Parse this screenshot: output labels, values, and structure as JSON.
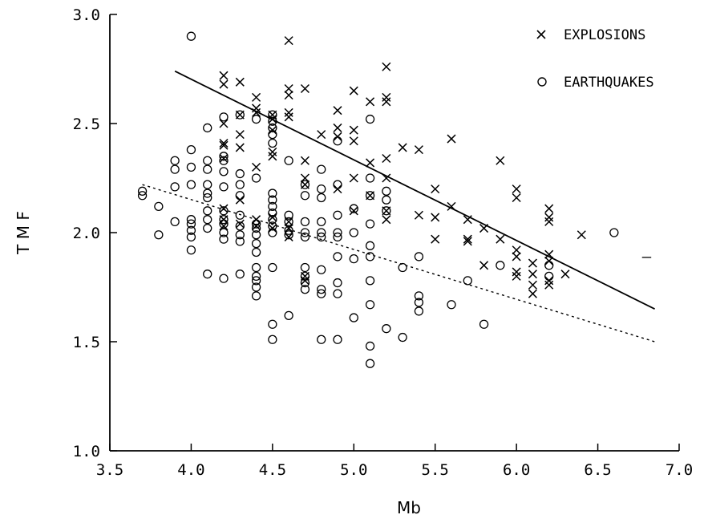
{
  "chart_data": {
    "type": "scatter",
    "title": "",
    "xlabel": "Mb",
    "ylabel": "T M F",
    "xlim": [
      3.5,
      7.0
    ],
    "ylim": [
      1.0,
      3.0
    ],
    "x_ticks": [
      "3.5",
      "4.0",
      "4.5",
      "5.0",
      "5.5",
      "6.0",
      "6.5",
      "7.0"
    ],
    "y_ticks": [
      "1.0",
      "1.5",
      "2.0",
      "2.5",
      "3.0"
    ],
    "grid": false,
    "legend_position": "top-right",
    "series": [
      {
        "name": "EXPLOSIONS",
        "marker": "x",
        "points": [
          [
            4.2,
            2.72
          ],
          [
            4.2,
            2.68
          ],
          [
            4.3,
            2.69
          ],
          [
            4.4,
            2.62
          ],
          [
            4.6,
            2.88
          ],
          [
            4.6,
            2.66
          ],
          [
            4.6,
            2.63
          ],
          [
            4.7,
            2.66
          ],
          [
            4.9,
            2.56
          ],
          [
            4.9,
            2.48
          ],
          [
            5.0,
            2.65
          ],
          [
            5.0,
            2.47
          ],
          [
            5.0,
            2.42
          ],
          [
            5.1,
            2.6
          ],
          [
            5.2,
            2.76
          ],
          [
            5.2,
            2.62
          ],
          [
            5.2,
            2.6
          ],
          [
            4.2,
            2.5
          ],
          [
            4.3,
            2.54
          ],
          [
            4.3,
            2.45
          ],
          [
            4.3,
            2.39
          ],
          [
            4.4,
            2.57
          ],
          [
            4.4,
            2.55
          ],
          [
            4.5,
            2.54
          ],
          [
            4.5,
            2.52
          ],
          [
            4.5,
            2.47
          ],
          [
            4.6,
            2.55
          ],
          [
            4.6,
            2.53
          ],
          [
            4.8,
            2.45
          ],
          [
            4.9,
            2.44
          ],
          [
            4.2,
            2.41
          ],
          [
            4.2,
            2.4
          ],
          [
            4.2,
            2.34
          ],
          [
            4.4,
            2.3
          ],
          [
            4.5,
            2.37
          ],
          [
            4.5,
            2.35
          ],
          [
            4.7,
            2.33
          ],
          [
            4.7,
            2.25
          ],
          [
            4.7,
            2.22
          ],
          [
            4.9,
            2.2
          ],
          [
            5.0,
            2.25
          ],
          [
            5.1,
            2.32
          ],
          [
            5.1,
            2.17
          ],
          [
            5.2,
            2.34
          ],
          [
            5.2,
            2.25
          ],
          [
            5.3,
            2.39
          ],
          [
            5.4,
            2.38
          ],
          [
            5.6,
            2.43
          ],
          [
            5.5,
            2.2
          ],
          [
            5.2,
            2.1
          ],
          [
            5.2,
            2.06
          ],
          [
            5.4,
            2.08
          ],
          [
            5.5,
            2.07
          ],
          [
            5.5,
            1.97
          ],
          [
            5.6,
            2.12
          ],
          [
            5.7,
            2.06
          ],
          [
            5.7,
            1.97
          ],
          [
            5.7,
            1.96
          ],
          [
            5.8,
            2.02
          ],
          [
            5.8,
            1.85
          ],
          [
            5.9,
            2.33
          ],
          [
            5.9,
            1.97
          ],
          [
            6.0,
            2.2
          ],
          [
            6.0,
            2.16
          ],
          [
            6.0,
            1.92
          ],
          [
            6.0,
            1.89
          ],
          [
            6.0,
            1.82
          ],
          [
            6.0,
            1.8
          ],
          [
            6.1,
            1.86
          ],
          [
            6.1,
            1.81
          ],
          [
            6.1,
            1.76
          ],
          [
            6.1,
            1.72
          ],
          [
            6.2,
            2.11
          ],
          [
            6.2,
            2.07
          ],
          [
            6.2,
            2.05
          ],
          [
            6.2,
            1.9
          ],
          [
            6.2,
            1.87
          ],
          [
            6.2,
            1.78
          ],
          [
            6.2,
            1.76
          ],
          [
            6.3,
            1.81
          ],
          [
            6.4,
            1.99
          ],
          [
            4.2,
            2.11
          ],
          [
            4.2,
            2.06
          ],
          [
            4.2,
            2.03
          ],
          [
            4.3,
            2.15
          ],
          [
            4.3,
            2.04
          ],
          [
            4.4,
            2.06
          ],
          [
            4.4,
            2.03
          ],
          [
            4.5,
            2.07
          ],
          [
            4.5,
            2.02
          ],
          [
            4.6,
            2.05
          ],
          [
            4.6,
            2.02
          ],
          [
            4.6,
            1.98
          ],
          [
            4.7,
            1.8
          ],
          [
            4.7,
            1.78
          ],
          [
            5.0,
            2.1
          ]
        ]
      },
      {
        "name": "EARTHQUAKES",
        "marker": "o",
        "points": [
          [
            4.0,
            2.9
          ],
          [
            4.2,
            2.53
          ],
          [
            4.3,
            2.54
          ],
          [
            4.4,
            2.52
          ],
          [
            4.5,
            2.54
          ],
          [
            4.5,
            2.51
          ],
          [
            4.5,
            2.48
          ],
          [
            4.5,
            2.45
          ],
          [
            4.5,
            2.41
          ],
          [
            4.9,
            2.42
          ],
          [
            5.1,
            2.52
          ],
          [
            4.1,
            2.48
          ],
          [
            4.2,
            2.35
          ],
          [
            4.2,
            2.33
          ],
          [
            4.2,
            2.28
          ],
          [
            4.1,
            2.33
          ],
          [
            4.1,
            2.29
          ],
          [
            4.0,
            2.38
          ],
          [
            4.0,
            2.3
          ],
          [
            3.9,
            2.33
          ],
          [
            3.9,
            2.29
          ],
          [
            3.9,
            2.21
          ],
          [
            4.0,
            2.22
          ],
          [
            4.1,
            2.22
          ],
          [
            4.1,
            2.18
          ],
          [
            4.1,
            2.16
          ],
          [
            4.2,
            2.21
          ],
          [
            4.3,
            2.27
          ],
          [
            4.3,
            2.22
          ],
          [
            4.3,
            2.17
          ],
          [
            4.4,
            2.25
          ],
          [
            4.5,
            2.18
          ],
          [
            4.5,
            2.15
          ],
          [
            4.5,
            2.12
          ],
          [
            4.6,
            2.33
          ],
          [
            4.7,
            2.22
          ],
          [
            4.7,
            2.17
          ],
          [
            4.8,
            2.29
          ],
          [
            4.8,
            2.2
          ],
          [
            4.8,
            2.16
          ],
          [
            4.9,
            2.22
          ],
          [
            4.9,
            2.08
          ],
          [
            5.0,
            2.11
          ],
          [
            5.1,
            2.25
          ],
          [
            5.1,
            2.17
          ],
          [
            5.2,
            2.19
          ],
          [
            5.2,
            2.15
          ],
          [
            5.2,
            2.1
          ],
          [
            3.7,
            2.19
          ],
          [
            3.7,
            2.17
          ],
          [
            3.8,
            2.12
          ],
          [
            3.8,
            1.99
          ],
          [
            3.9,
            2.05
          ],
          [
            4.0,
            2.06
          ],
          [
            4.0,
            2.04
          ],
          [
            4.0,
            2.01
          ],
          [
            4.0,
            1.98
          ],
          [
            4.0,
            1.92
          ],
          [
            4.1,
            2.1
          ],
          [
            4.1,
            2.06
          ],
          [
            4.1,
            2.02
          ],
          [
            4.1,
            1.81
          ],
          [
            4.2,
            2.1
          ],
          [
            4.2,
            2.06
          ],
          [
            4.2,
            2.04
          ],
          [
            4.2,
            2.0
          ],
          [
            4.2,
            1.97
          ],
          [
            4.2,
            1.79
          ],
          [
            4.3,
            2.08
          ],
          [
            4.3,
            2.03
          ],
          [
            4.3,
            1.99
          ],
          [
            4.3,
            1.96
          ],
          [
            4.3,
            1.81
          ],
          [
            4.4,
            2.04
          ],
          [
            4.4,
            2.02
          ],
          [
            4.4,
            1.99
          ],
          [
            4.4,
            1.95
          ],
          [
            4.4,
            1.91
          ],
          [
            4.4,
            1.84
          ],
          [
            4.4,
            1.8
          ],
          [
            4.4,
            1.78
          ],
          [
            4.4,
            1.75
          ],
          [
            4.4,
            1.71
          ],
          [
            4.5,
            2.09
          ],
          [
            4.5,
            2.06
          ],
          [
            4.5,
            2.03
          ],
          [
            4.5,
            2.0
          ],
          [
            4.5,
            1.84
          ],
          [
            4.6,
            2.08
          ],
          [
            4.6,
            2.05
          ],
          [
            4.6,
            2.01
          ],
          [
            4.6,
            1.99
          ],
          [
            4.7,
            2.05
          ],
          [
            4.7,
            2.0
          ],
          [
            4.7,
            1.98
          ],
          [
            4.7,
            1.84
          ],
          [
            4.7,
            1.8
          ],
          [
            4.7,
            1.77
          ],
          [
            4.7,
            1.74
          ],
          [
            4.8,
            2.05
          ],
          [
            4.8,
            2.0
          ],
          [
            4.8,
            1.98
          ],
          [
            4.8,
            1.83
          ],
          [
            4.8,
            1.74
          ],
          [
            4.8,
            1.72
          ],
          [
            4.9,
            2.0
          ],
          [
            4.9,
            1.98
          ],
          [
            4.9,
            1.89
          ],
          [
            4.9,
            1.77
          ],
          [
            4.9,
            1.72
          ],
          [
            5.0,
            2.0
          ],
          [
            5.0,
            1.88
          ],
          [
            5.0,
            1.61
          ],
          [
            5.1,
            2.04
          ],
          [
            5.1,
            1.94
          ],
          [
            5.1,
            1.89
          ],
          [
            5.1,
            1.78
          ],
          [
            5.1,
            1.67
          ],
          [
            5.1,
            1.48
          ],
          [
            5.1,
            1.4
          ],
          [
            5.2,
            1.56
          ],
          [
            5.3,
            1.84
          ],
          [
            5.3,
            1.52
          ],
          [
            5.4,
            1.89
          ],
          [
            5.4,
            1.71
          ],
          [
            5.4,
            1.68
          ],
          [
            5.4,
            1.64
          ],
          [
            5.6,
            1.67
          ],
          [
            5.7,
            1.78
          ],
          [
            5.8,
            1.58
          ],
          [
            5.9,
            1.85
          ],
          [
            6.2,
            1.85
          ],
          [
            6.2,
            1.8
          ],
          [
            6.6,
            2.0
          ],
          [
            4.5,
            1.58
          ],
          [
            4.5,
            1.51
          ],
          [
            4.6,
            1.62
          ],
          [
            4.8,
            1.51
          ],
          [
            4.9,
            1.51
          ]
        ]
      }
    ],
    "lines": [
      {
        "series": "EXPLOSIONS",
        "style": "solid",
        "x": [
          3.9,
          6.85
        ],
        "y": [
          2.74,
          1.65
        ]
      },
      {
        "series": "EARTHQUAKES",
        "style": "dashed",
        "x": [
          3.7,
          6.85
        ],
        "y": [
          2.22,
          1.5
        ]
      }
    ],
    "annotations": [
      {
        "text": "–",
        "x": 6.8,
        "y": 1.89
      }
    ]
  }
}
